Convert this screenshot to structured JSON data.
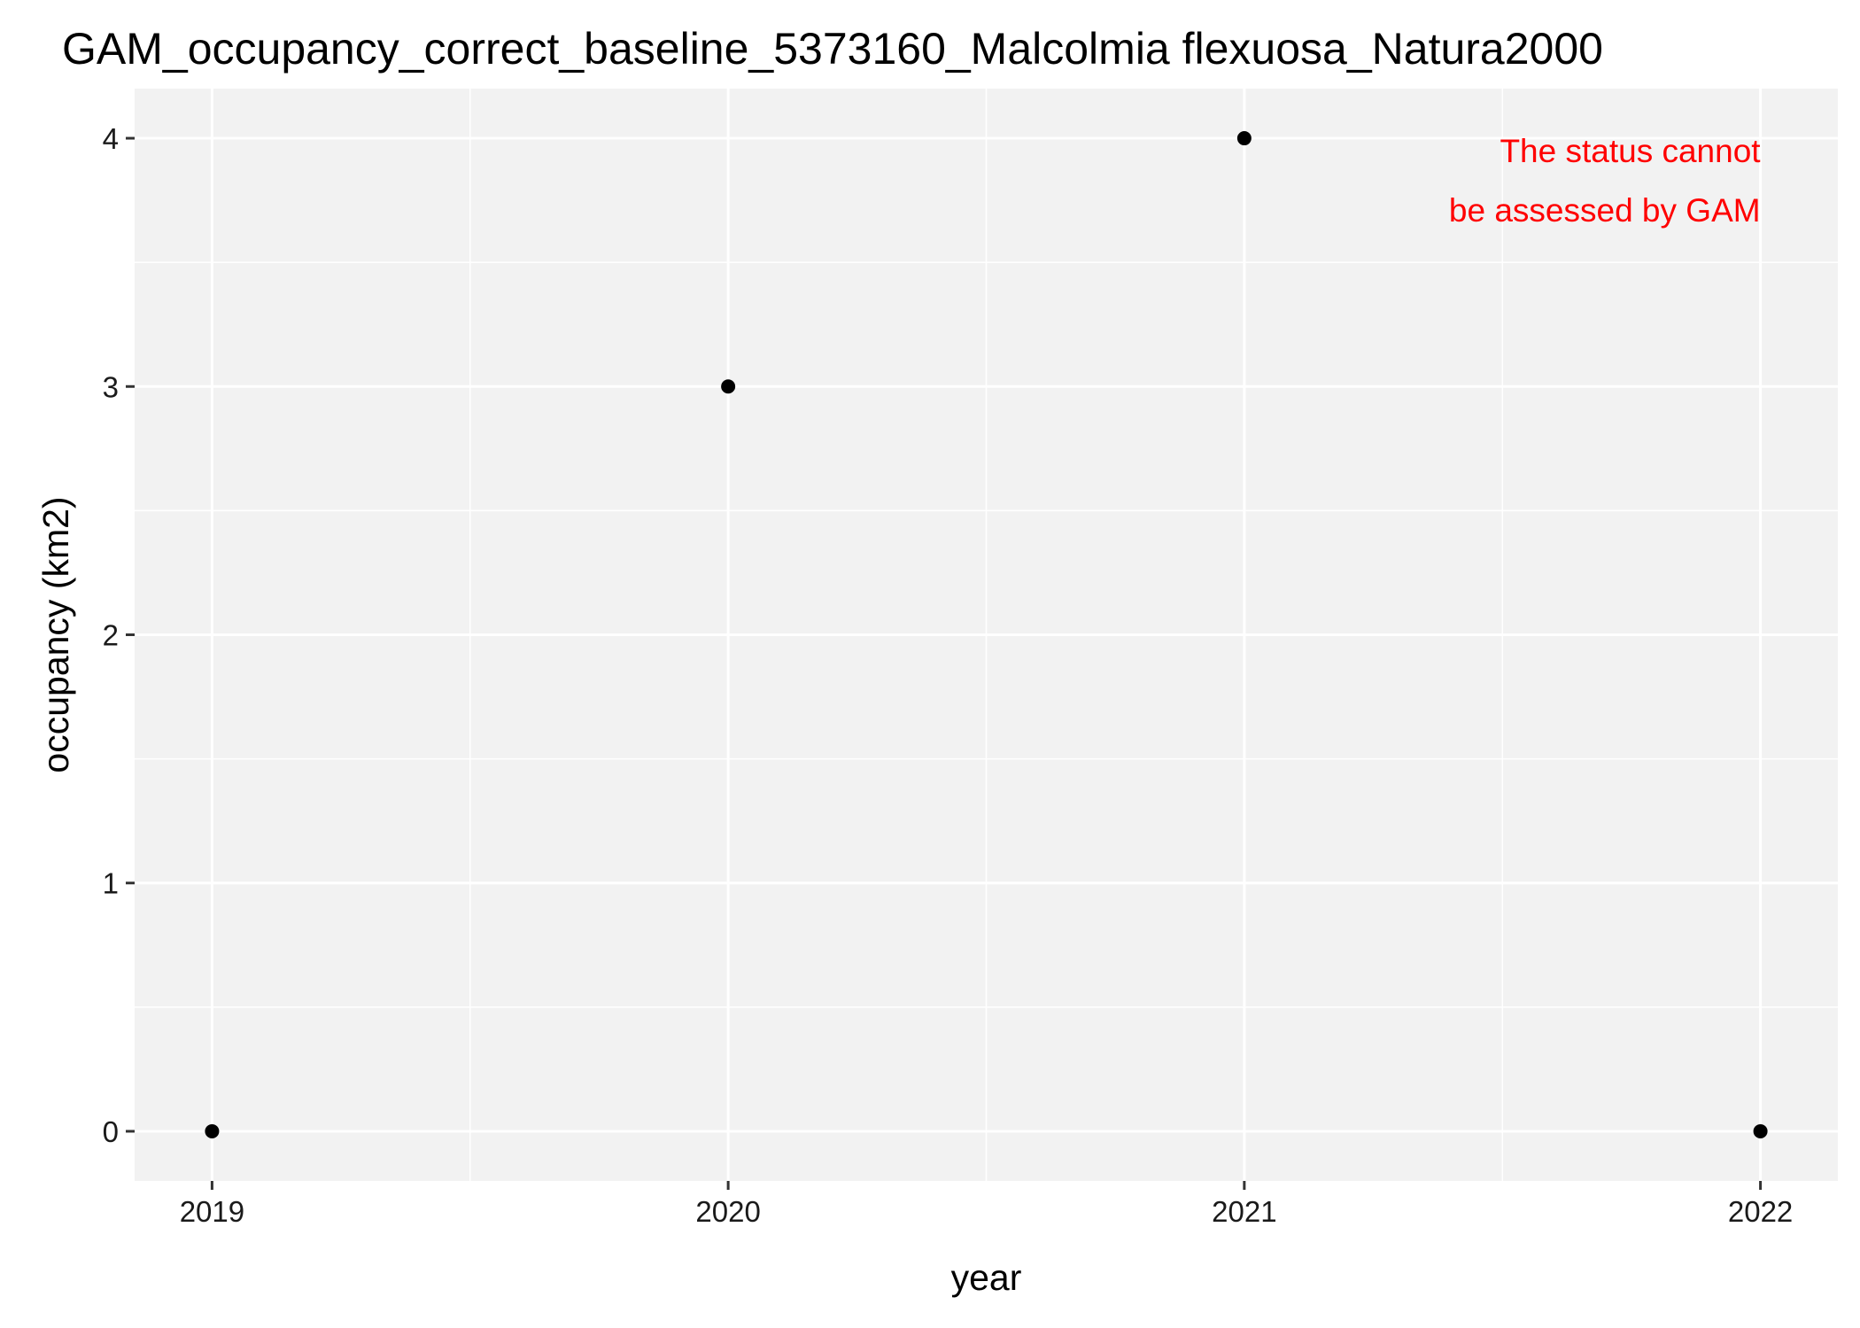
{
  "chart_data": {
    "type": "scatter",
    "title": "GAM_occupancy_correct_baseline_5373160_Malcolmia flexuosa_Natura2000",
    "xlabel": "year",
    "ylabel": "occupancy (km2)",
    "x_ticks": [
      2019,
      2020,
      2021,
      2022
    ],
    "y_ticks": [
      0,
      1,
      2,
      3,
      4
    ],
    "xlim": [
      2018.85,
      2022.15
    ],
    "ylim": [
      -0.2,
      4.2
    ],
    "grid": true,
    "series": [
      {
        "x": [
          2019,
          2020,
          2021,
          2022
        ],
        "y": [
          0,
          3,
          4,
          0
        ]
      }
    ],
    "annotation": {
      "lines": [
        "The status cannot",
        "be assessed by GAM"
      ],
      "color": "#ff0000",
      "x": 2022,
      "y": 4
    },
    "colors": {
      "panel_background": "#f2f2f2",
      "grid": "#ffffff",
      "point": "#000000"
    }
  }
}
